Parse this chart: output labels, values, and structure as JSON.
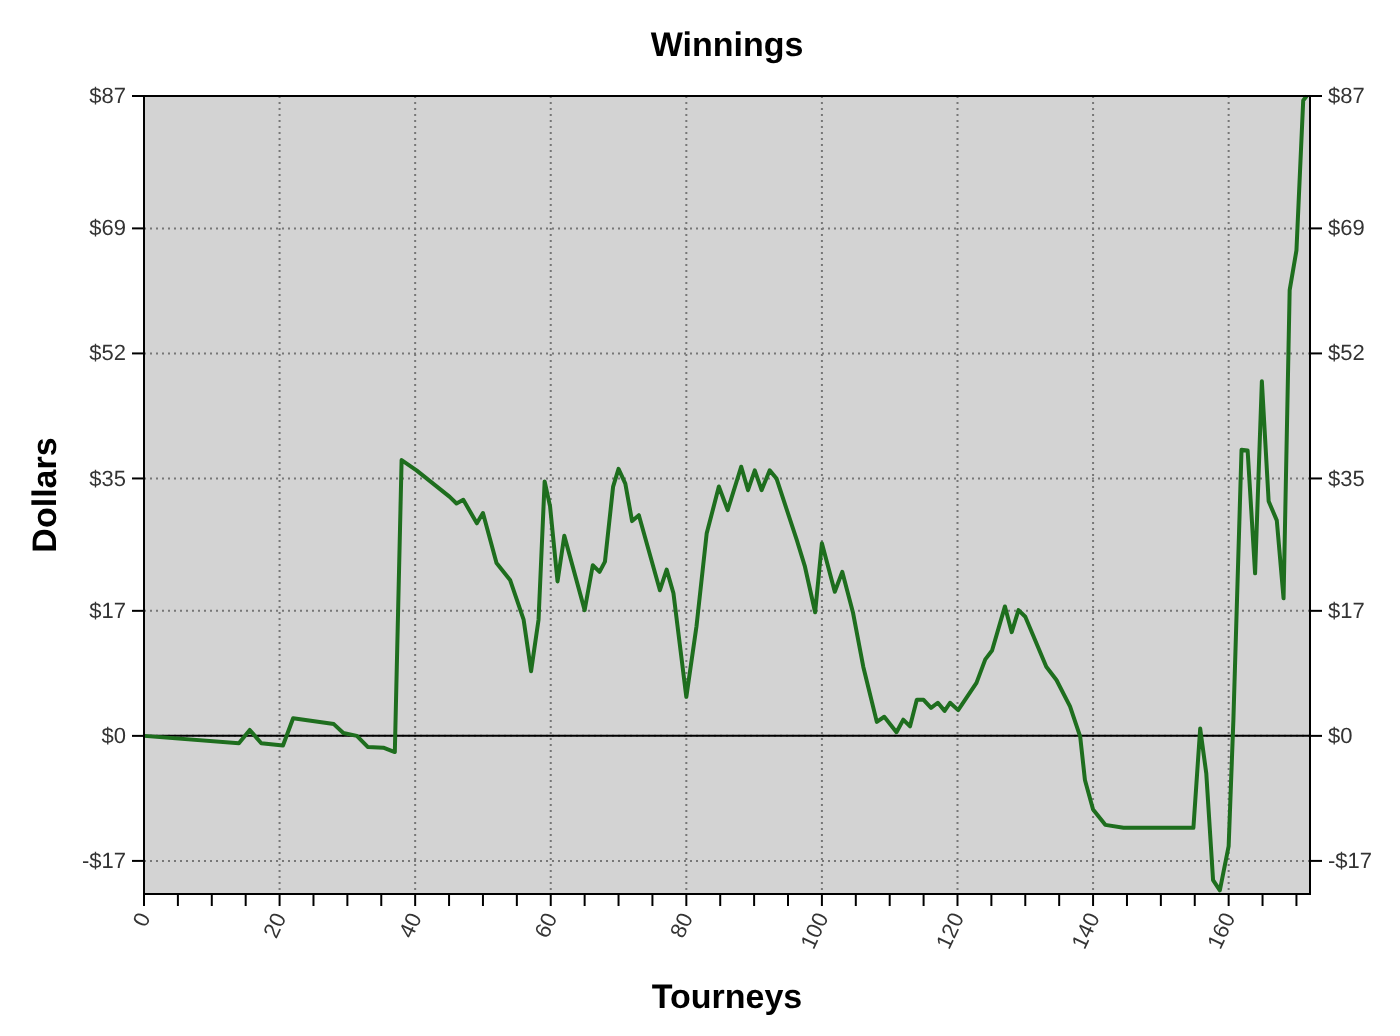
{
  "chart_data": {
    "type": "line",
    "title": "Winnings",
    "xlabel": "Tourneys",
    "ylabel": "Dollars",
    "xlim": [
      0,
      172
    ],
    "xticks": [
      0,
      {
        "value": 5,
        "label": null
      },
      {
        "value": 10,
        "label": null
      },
      {
        "value": 15,
        "label": null
      },
      20,
      {
        "value": 25,
        "label": null
      },
      {
        "value": 30,
        "label": null
      },
      {
        "value": 35,
        "label": null
      },
      40,
      {
        "value": 45,
        "label": null
      },
      {
        "value": 50,
        "label": null
      },
      {
        "value": 55,
        "label": null
      },
      60,
      {
        "value": 65,
        "label": null
      },
      {
        "value": 70,
        "label": null
      },
      {
        "value": 75,
        "label": null
      },
      80,
      {
        "value": 85,
        "label": null
      },
      {
        "value": 90,
        "label": null
      },
      {
        "value": 95,
        "label": null
      },
      100,
      {
        "value": 105,
        "label": null
      },
      {
        "value": 110,
        "label": null
      },
      {
        "value": 115,
        "label": null
      },
      120,
      {
        "value": 125,
        "label": null
      },
      {
        "value": 130,
        "label": null
      },
      {
        "value": 135,
        "label": null
      },
      140,
      {
        "value": 145,
        "label": null
      },
      {
        "value": 150,
        "label": null
      },
      {
        "value": 155,
        "label": null
      },
      160,
      {
        "value": 165,
        "label": null
      },
      {
        "value": 170,
        "label": null
      }
    ],
    "ylim": [
      -21.5,
      87
    ],
    "yticks": [
      {
        "value": -17,
        "label": "-$17"
      },
      {
        "value": 0,
        "label": "$0"
      },
      {
        "value": 17,
        "label": "$17"
      },
      {
        "value": 35,
        "label": "$35"
      },
      {
        "value": 52,
        "label": "$52"
      },
      {
        "value": 69,
        "label": "$69"
      },
      {
        "value": 87,
        "label": "$87"
      }
    ],
    "y2lim": [
      -21.5,
      87
    ],
    "y2ticks": [
      {
        "value": -17,
        "label": "-$17"
      },
      {
        "value": 0,
        "label": "$0"
      },
      {
        "value": 17,
        "label": "$17"
      },
      {
        "value": 35,
        "label": "$35"
      },
      {
        "value": 52,
        "label": "$52"
      },
      {
        "value": 69,
        "label": "$69"
      },
      {
        "value": 87,
        "label": "$87"
      }
    ],
    "grid": true,
    "marker": "none",
    "line_style": "solid",
    "ref_lines": [
      {
        "axis": "y",
        "value": 0,
        "color": "#000000"
      }
    ],
    "x": [
      0,
      14,
      15.6,
      17.3,
      20.5,
      22,
      28,
      29.4,
      31.4,
      33,
      35.3,
      37,
      38,
      40.2,
      45.1,
      46.1,
      47.1,
      49.1,
      50,
      52,
      54,
      56,
      57.1,
      58.2,
      59.1,
      59.9,
      61,
      62,
      65,
      66.2,
      67.2,
      68,
      69.2,
      70,
      71,
      72,
      73,
      76.1,
      77.1,
      78.1,
      80,
      81.5,
      83,
      84.8,
      86.1,
      88.1,
      89.1,
      90.1,
      91.1,
      92.3,
      93.3,
      96.3,
      97.5,
      99,
      100,
      101.9,
      103,
      104.6,
      106.1,
      108.1,
      109.2,
      111,
      112,
      113,
      114,
      115,
      116.1,
      117.1,
      118.1,
      118.9,
      120.1,
      122.8,
      124.1,
      125.1,
      127,
      128,
      129,
      130,
      133.1,
      134.6,
      136.6,
      138.1,
      138.8,
      140,
      141.8,
      144.5,
      154.8,
      155.8,
      156.7,
      157.7,
      158.7,
      160,
      160.7,
      161.9,
      162.8,
      163.9,
      164.9,
      165.9,
      167.1,
      168.1,
      169,
      170,
      171,
      171.5
    ],
    "series": [
      {
        "color": "#1e6e1e",
        "values": [
          0,
          -1,
          0.8,
          -1,
          -1.3,
          2.4,
          1.6,
          0.4,
          0,
          -1.5,
          -1.6,
          -2.2,
          37.5,
          36.1,
          32.5,
          31.6,
          32.1,
          28.9,
          30.3,
          23.5,
          21.2,
          15.8,
          8.8,
          15.8,
          34.6,
          31.2,
          21,
          27.2,
          17.1,
          23.2,
          22.3,
          23.7,
          33.9,
          36.3,
          34.3,
          29.2,
          30,
          19.8,
          22.6,
          19.4,
          5.3,
          14.9,
          27.5,
          33.9,
          30.7,
          36.6,
          33.4,
          36.1,
          33.4,
          36.1,
          35,
          26.6,
          23,
          16.8,
          26.2,
          19.6,
          22.3,
          16.7,
          9.4,
          1.9,
          2.6,
          0.5,
          2.2,
          1.3,
          4.9,
          4.9,
          3.8,
          4.5,
          3.4,
          4.5,
          3.5,
          7.2,
          10.4,
          11.6,
          17.6,
          14.1,
          17.1,
          16.2,
          9.4,
          7.6,
          4,
          -0.1,
          -6,
          -10,
          -12.1,
          -12.5,
          -12.5,
          1,
          -5.1,
          -19.6,
          -21,
          -15,
          2.2,
          38.9,
          38.8,
          22.1,
          48.2,
          31.9,
          29.3,
          18.7,
          60.6,
          66,
          86.4,
          87
        ]
      }
    ]
  }
}
